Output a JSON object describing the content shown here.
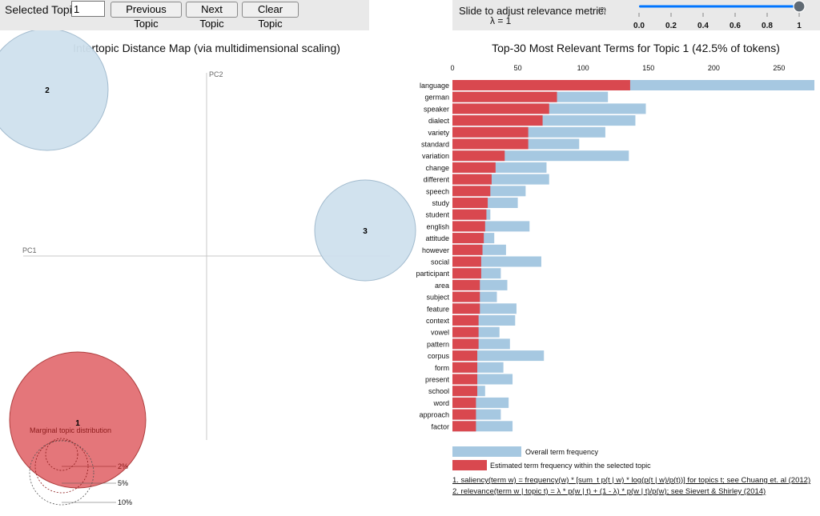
{
  "controls": {
    "selected_topic_label": "Selected Topic:",
    "selected_topic_value": "1",
    "prev_label": "Previous Topic",
    "next_label": "Next Topic",
    "clear_label": "Clear Topic"
  },
  "relevance": {
    "label": "Slide to adjust relevance metric:",
    "footnote": "(2)",
    "lambda_label": "λ = 1",
    "lambda_value": 1,
    "ticks": [
      "0.0",
      "0.2",
      "0.4",
      "0.6",
      "0.8",
      "1"
    ]
  },
  "colors": {
    "overall": "#a6c8e1",
    "selected": "#d9484f",
    "circle_selected": "#e36f73",
    "circle_default": "#cfe1ee"
  },
  "chart_data": [
    {
      "type": "scatter",
      "title": "Intertopic Distance Map (via multidimensional scaling)",
      "xlabel": "PC1",
      "ylabel": "PC2",
      "topics": [
        {
          "label": "2",
          "selected": false
        },
        {
          "label": "3",
          "selected": false
        },
        {
          "label": "1",
          "selected": true
        }
      ],
      "legend": {
        "title": "Marginal topic distribution",
        "sizes": [
          "2%",
          "5%",
          "10%"
        ]
      }
    },
    {
      "type": "bar",
      "title": "Top-30 Most Relevant Terms for Topic 1 (42.5% of tokens)",
      "x_ticks": [
        0,
        50,
        100,
        150,
        200,
        250
      ],
      "xlim": [
        0,
        277
      ],
      "terms": [
        "language",
        "german",
        "speaker",
        "dialect",
        "variety",
        "standard",
        "variation",
        "change",
        "different",
        "speech",
        "study",
        "student",
        "english",
        "attitude",
        "however",
        "social",
        "participant",
        "area",
        "subject",
        "feature",
        "context",
        "vowel",
        "pattern",
        "corpus",
        "form",
        "present",
        "school",
        "word",
        "approach",
        "factor"
      ],
      "series": [
        {
          "name": "Overall term frequency",
          "values": [
            277,
            119,
            148,
            140,
            117,
            97,
            135,
            72,
            74,
            56,
            50,
            29,
            59,
            32,
            41,
            68,
            37,
            42,
            34,
            49,
            48,
            36,
            44,
            70,
            39,
            46,
            25,
            43,
            37,
            46
          ]
        },
        {
          "name": "Estimated term frequency within the selected topic",
          "values": [
            136,
            80,
            74,
            69,
            58,
            58,
            40,
            33,
            30,
            29,
            27,
            26,
            25,
            24,
            23,
            22,
            22,
            21,
            21,
            21,
            20,
            20,
            20,
            19,
            19,
            19,
            19,
            18,
            18,
            18
          ]
        }
      ],
      "legend_items": [
        "Overall term frequency",
        "Estimated term frequency within the selected topic"
      ]
    }
  ],
  "footnotes": [
    "1. saliency(term w) = frequency(w) * [sum_t p(t | w) * log(p(t | w)/p(t))] for topics t; see Chuang et. al (2012)",
    "2. relevance(term w | topic t) = λ * p(w | t) + (1 - λ) * p(w | t)/p(w); see Sievert & Shirley (2014)"
  ]
}
